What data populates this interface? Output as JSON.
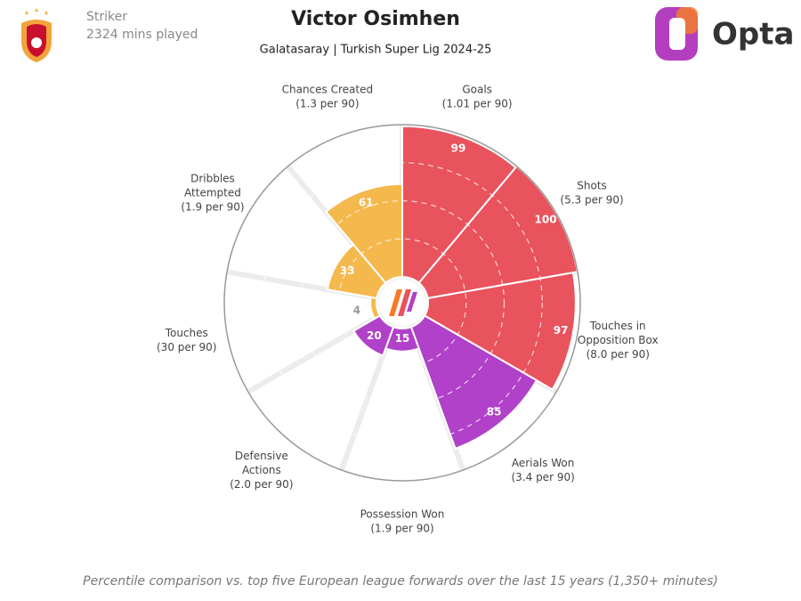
{
  "header": {
    "position": "Striker",
    "minutes": "2324 mins played",
    "title": "Victor Osimhen",
    "subtitle": "Galatasaray | Turkish Super Lig 2024-25",
    "brand": "Opta"
  },
  "chart_data": {
    "type": "pizza",
    "categories": [
      [
        "Goals"
      ],
      [
        "Shots"
      ],
      [
        "Touches in",
        "Opposition Box"
      ],
      [
        "Aerials Won"
      ],
      [
        "Possession Won"
      ],
      [
        "Defensive",
        "Actions"
      ],
      [
        "Touches"
      ],
      [
        "Dribbles",
        "Attempted"
      ],
      [
        "Chances Created"
      ]
    ],
    "per90": [
      "(1.01 per 90)",
      "(5.3 per 90)",
      "(8.0 per 90)",
      "(3.4 per 90)",
      "(1.9 per 90)",
      "(2.0 per 90)",
      "(30 per 90)",
      "(1.9 per 90)",
      "(1.3 per 90)"
    ],
    "values": [
      99,
      100,
      97,
      85,
      15,
      20,
      4,
      33,
      61
    ],
    "colors": [
      "#e9535d",
      "#e9535d",
      "#e9535d",
      "#b041c8",
      "#b041c8",
      "#b041c8",
      "#f5b84c",
      "#f5b84c",
      "#f5b84c"
    ],
    "rlim": [
      0,
      100
    ],
    "rticks": [
      25,
      50,
      75,
      100
    ]
  },
  "footer": "Percentile comparison vs. top five European league forwards over the last 15 years (1,350+ minutes)"
}
